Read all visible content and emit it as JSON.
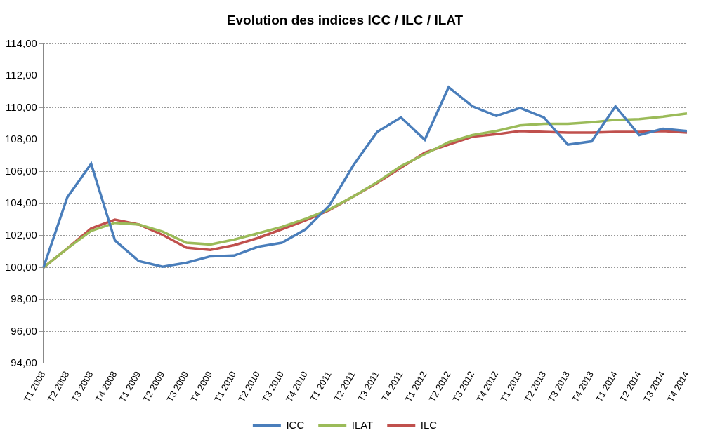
{
  "chart_data": {
    "type": "line",
    "title": "Evolution des indices ICC / ILC / ILAT",
    "categories": [
      "T1 2008",
      "T2 2008",
      "T3 2008",
      "T4 2008",
      "T1 2009",
      "T2 2009",
      "T3 2009",
      "T4 2009",
      "T1 2010",
      "T2 2010",
      "T3 2010",
      "T4 2010",
      "T1 2011",
      "T2 2011",
      "T3 2011",
      "T4 2011",
      "T1 2012",
      "T2 2012",
      "T3 2012",
      "T4 2012",
      "T1 2013",
      "T2 2013",
      "T3 2013",
      "T4 2013",
      "T1 2014",
      "T2 2014",
      "T3 2014",
      "T4 2014"
    ],
    "series": [
      {
        "name": "ICC",
        "color": "#4a7ebb",
        "values": [
          100,
          104.4,
          106.5,
          101.7,
          100.4,
          100.05,
          100.3,
          100.7,
          100.75,
          101.3,
          101.55,
          102.4,
          103.9,
          106.4,
          108.5,
          109.4,
          108.0,
          111.3,
          110.1,
          109.5,
          110.0,
          109.4,
          107.7,
          107.9,
          110.1,
          108.3,
          108.7,
          108.55
        ]
      },
      {
        "name": "ILAT",
        "color": "#9bbb59",
        "values": [
          100,
          101.2,
          102.3,
          102.8,
          102.7,
          102.25,
          101.55,
          101.45,
          101.75,
          102.15,
          102.55,
          103.05,
          103.65,
          104.45,
          105.35,
          106.35,
          107.1,
          107.85,
          108.3,
          108.55,
          108.9,
          109.0,
          109.0,
          109.1,
          109.25,
          109.3,
          109.45,
          109.65
        ]
      },
      {
        "name": "ILC",
        "color": "#c0504d",
        "values": [
          100,
          101.2,
          102.45,
          103.0,
          102.7,
          102.05,
          101.25,
          101.1,
          101.4,
          101.85,
          102.4,
          102.95,
          103.6,
          104.45,
          105.3,
          106.25,
          107.2,
          107.7,
          108.2,
          108.35,
          108.55,
          108.5,
          108.45,
          108.45,
          108.5,
          108.5,
          108.55,
          108.45
        ]
      }
    ],
    "ylim": [
      94,
      114
    ],
    "yticks": [
      {
        "value": 94,
        "label": "94,00"
      },
      {
        "value": 96,
        "label": "96,00"
      },
      {
        "value": 98,
        "label": "98,00"
      },
      {
        "value": 100,
        "label": "100,00"
      },
      {
        "value": 102,
        "label": "102,00"
      },
      {
        "value": 104,
        "label": "104,00"
      },
      {
        "value": 106,
        "label": "106,00"
      },
      {
        "value": 108,
        "label": "108,00"
      },
      {
        "value": 110,
        "label": "110,00"
      },
      {
        "value": 112,
        "label": "112,00"
      },
      {
        "value": 114,
        "label": "114,00"
      }
    ],
    "grid": true,
    "legend": "bottom"
  }
}
